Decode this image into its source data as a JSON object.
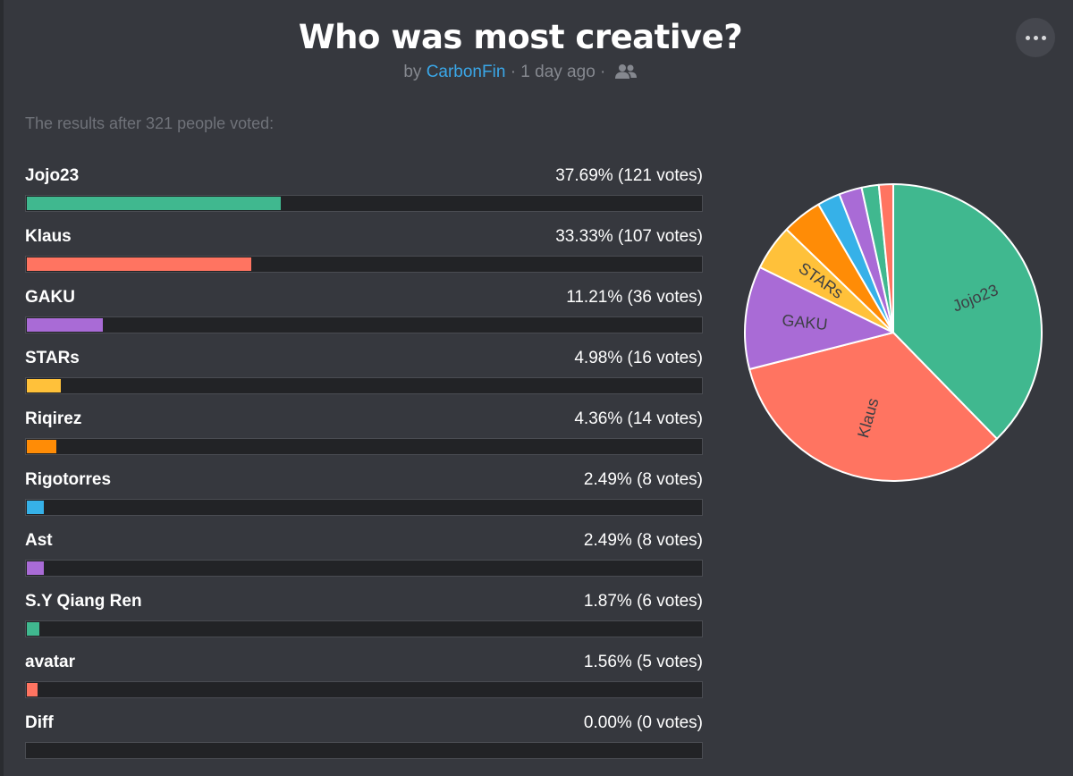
{
  "poll": {
    "title": "Who was most creative?",
    "by": "by",
    "author": "CarbonFin",
    "separator": "·",
    "time": "1 day ago",
    "summary": "The results after 321 people voted:"
  },
  "icons": {
    "more": "more-horizontal-icon",
    "group": "group-users-icon"
  },
  "chart_data": {
    "type": "pie",
    "title": "Who was most creative?",
    "total_votes": 321,
    "categories": [
      "Jojo23",
      "Klaus",
      "GAKU",
      "STARs",
      "Riqirez",
      "Rigotorres",
      "Ast",
      "S.Y Qiang Ren",
      "avatar",
      "Diff"
    ],
    "values": [
      121,
      107,
      36,
      16,
      14,
      8,
      8,
      6,
      5,
      0
    ],
    "percents": [
      37.69,
      33.33,
      11.21,
      4.98,
      4.36,
      2.49,
      2.49,
      1.87,
      1.56,
      0.0
    ],
    "colors": [
      "#40b88f",
      "#ff7461",
      "#a96bd6",
      "#ffc13a",
      "#ff8c06",
      "#36b1e8",
      "#a96bd6",
      "#40b88f",
      "#ff7461",
      "#36b1e8"
    ],
    "slice_labels_shown": [
      "Jojo23",
      "Klaus",
      "GAKU",
      "STARs"
    ]
  },
  "options": [
    {
      "label": "Jojo23",
      "stats": "37.69% (121 votes)"
    },
    {
      "label": "Klaus",
      "stats": "33.33% (107 votes)"
    },
    {
      "label": "GAKU",
      "stats": "11.21% (36 votes)"
    },
    {
      "label": "STARs",
      "stats": "4.98% (16 votes)"
    },
    {
      "label": "Riqirez",
      "stats": "4.36% (14 votes)"
    },
    {
      "label": "Rigotorres",
      "stats": "2.49% (8 votes)"
    },
    {
      "label": "Ast",
      "stats": "2.49% (8 votes)"
    },
    {
      "label": "S.Y Qiang Ren",
      "stats": "1.87% (6 votes)"
    },
    {
      "label": "avatar",
      "stats": "1.56% (5 votes)"
    },
    {
      "label": "Diff",
      "stats": "0.00% (0 votes)"
    }
  ]
}
